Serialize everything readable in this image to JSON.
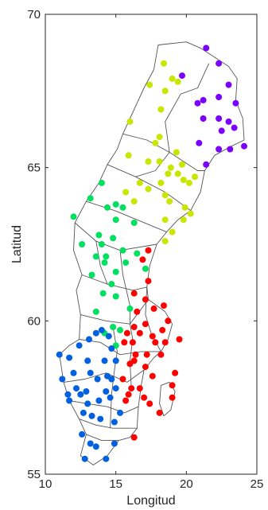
{
  "chart_data": {
    "type": "scatter",
    "title": "",
    "xlabel": "Longitud",
    "ylabel": "Latitud",
    "xlim": [
      10,
      25
    ],
    "ylim": [
      55,
      70
    ],
    "xticks": [
      10,
      15,
      20,
      25
    ],
    "yticks": [
      55,
      60,
      65,
      70
    ],
    "xtick_labels": [
      "10",
      "15",
      "20",
      "25"
    ],
    "ytick_labels": [
      "55",
      "60",
      "65",
      "70"
    ],
    "grid": false,
    "legend": false,
    "series": [
      {
        "color": "#7b00ff",
        "points": [
          [
            21.4,
            68.9
          ],
          [
            22.3,
            68.4
          ],
          [
            19.7,
            68.0
          ],
          [
            21.2,
            67.2
          ],
          [
            20.8,
            67.1
          ],
          [
            22.3,
            67.3
          ],
          [
            23.0,
            67.7
          ],
          [
            23.5,
            67.1
          ],
          [
            21.2,
            66.6
          ],
          [
            22.3,
            66.6
          ],
          [
            23.0,
            66.5
          ],
          [
            23.4,
            66.3
          ],
          [
            22.5,
            66.2
          ],
          [
            20.9,
            65.8
          ],
          [
            22.3,
            65.6
          ],
          [
            23.1,
            65.6
          ],
          [
            24.1,
            65.7
          ],
          [
            21.4,
            65.1
          ]
        ]
      },
      {
        "color": "#c8e600",
        "points": [
          [
            18.4,
            68.4
          ],
          [
            19.0,
            67.9
          ],
          [
            19.4,
            67.8
          ],
          [
            17.4,
            67.7
          ],
          [
            18.5,
            67.5
          ],
          [
            18.2,
            66.9
          ],
          [
            16.0,
            66.5
          ],
          [
            18.1,
            66.0
          ],
          [
            17.8,
            65.8
          ],
          [
            19.3,
            65.5
          ],
          [
            15.9,
            65.4
          ],
          [
            18.1,
            65.2
          ],
          [
            17.3,
            65.2
          ],
          [
            18.9,
            65.0
          ],
          [
            19.7,
            65.1
          ],
          [
            19.4,
            64.8
          ],
          [
            18.7,
            64.8
          ],
          [
            20.2,
            64.5
          ],
          [
            19.8,
            64.6
          ],
          [
            20.6,
            64.7
          ],
          [
            16.7,
            64.5
          ],
          [
            18.2,
            64.5
          ],
          [
            17.3,
            64.3
          ],
          [
            15.7,
            64.2
          ],
          [
            18.5,
            64.1
          ],
          [
            16.3,
            63.9
          ],
          [
            18.8,
            63.9
          ],
          [
            19.9,
            63.7
          ],
          [
            18.5,
            63.3
          ],
          [
            19.8,
            63.3
          ],
          [
            20.3,
            63.5
          ],
          [
            19.0,
            62.9
          ],
          [
            18.5,
            62.6
          ]
        ]
      },
      {
        "color": "#00e060",
        "points": [
          [
            14.0,
            64.5
          ],
          [
            13.2,
            64.0
          ],
          [
            15.0,
            63.8
          ],
          [
            14.4,
            63.7
          ],
          [
            15.5,
            63.7
          ],
          [
            12.0,
            63.4
          ],
          [
            15.0,
            63.3
          ],
          [
            16.3,
            63.2
          ],
          [
            13.8,
            62.8
          ],
          [
            14.8,
            62.7
          ],
          [
            12.6,
            62.5
          ],
          [
            14.0,
            62.5
          ],
          [
            15.5,
            62.3
          ],
          [
            16.5,
            62.2
          ],
          [
            13.6,
            62.1
          ],
          [
            14.3,
            62.1
          ],
          [
            15.7,
            61.9
          ],
          [
            14.2,
            61.9
          ],
          [
            17.1,
            61.7
          ],
          [
            15.0,
            61.6
          ],
          [
            13.3,
            61.5
          ],
          [
            14.7,
            61.2
          ],
          [
            14.1,
            60.9
          ],
          [
            15.0,
            60.8
          ],
          [
            16.0,
            60.4
          ],
          [
            13.6,
            60.3
          ],
          [
            14.8,
            59.8
          ],
          [
            15.3,
            59.7
          ],
          [
            14.2,
            59.6
          ],
          [
            15.0,
            59.2
          ]
        ]
      },
      {
        "color": "#ff0000",
        "points": [
          [
            17.3,
            62.3
          ],
          [
            16.9,
            62.0
          ],
          [
            17.3,
            61.3
          ],
          [
            16.3,
            60.9
          ],
          [
            17.1,
            60.7
          ],
          [
            16.5,
            60.3
          ],
          [
            18.4,
            60.5
          ],
          [
            17.7,
            60.4
          ],
          [
            18.7,
            60.0
          ],
          [
            17.1,
            59.9
          ],
          [
            16.3,
            59.8
          ],
          [
            15.8,
            59.6
          ],
          [
            18.3,
            59.7
          ],
          [
            16.7,
            59.6
          ],
          [
            17.6,
            59.5
          ],
          [
            15.6,
            59.3
          ],
          [
            19.5,
            59.4
          ],
          [
            16.2,
            59.3
          ],
          [
            17.8,
            59.3
          ],
          [
            18.5,
            59.3
          ],
          [
            16.4,
            58.9
          ],
          [
            17.2,
            58.9
          ],
          [
            18.2,
            58.9
          ],
          [
            16.3,
            58.7
          ],
          [
            16.0,
            58.6
          ],
          [
            17.1,
            58.5
          ],
          [
            19.2,
            58.3
          ],
          [
            17.6,
            58.2
          ],
          [
            15.5,
            58.1
          ],
          [
            16.1,
            57.8
          ],
          [
            16.7,
            57.8
          ],
          [
            15.9,
            57.6
          ],
          [
            17.0,
            57.5
          ],
          [
            19.0,
            57.9
          ],
          [
            15.7,
            57.4
          ],
          [
            19.0,
            57.5
          ],
          [
            17.4,
            57.3
          ],
          [
            18.1,
            57.0
          ],
          [
            16.3,
            56.2
          ]
        ]
      },
      {
        "color": "#0060e0",
        "points": [
          [
            14.0,
            59.7
          ],
          [
            13.6,
            59.6
          ],
          [
            14.5,
            59.5
          ],
          [
            13.1,
            59.4
          ],
          [
            12.4,
            59.2
          ],
          [
            14.7,
            59.1
          ],
          [
            11.0,
            58.9
          ],
          [
            11.7,
            58.8
          ],
          [
            13.0,
            58.7
          ],
          [
            14.2,
            58.7
          ],
          [
            15.0,
            58.7
          ],
          [
            13.2,
            58.3
          ],
          [
            12.0,
            58.3
          ],
          [
            14.4,
            58.2
          ],
          [
            13.7,
            58.1
          ],
          [
            11.2,
            58.1
          ],
          [
            14.7,
            58.1
          ],
          [
            12.2,
            57.8
          ],
          [
            15.0,
            57.8
          ],
          [
            12.5,
            57.6
          ],
          [
            11.6,
            57.6
          ],
          [
            12.9,
            57.7
          ],
          [
            14.3,
            57.7
          ],
          [
            11.7,
            57.4
          ],
          [
            14.6,
            57.5
          ],
          [
            13.8,
            57.4
          ],
          [
            13.0,
            57.3
          ],
          [
            15.3,
            57.0
          ],
          [
            12.7,
            57.0
          ],
          [
            13.3,
            56.9
          ],
          [
            13.9,
            56.8
          ],
          [
            14.9,
            56.7
          ],
          [
            12.6,
            56.3
          ],
          [
            13.2,
            56.0
          ],
          [
            14.9,
            56.0
          ],
          [
            13.6,
            55.9
          ],
          [
            12.8,
            55.5
          ],
          [
            14.3,
            55.5
          ]
        ]
      }
    ]
  }
}
